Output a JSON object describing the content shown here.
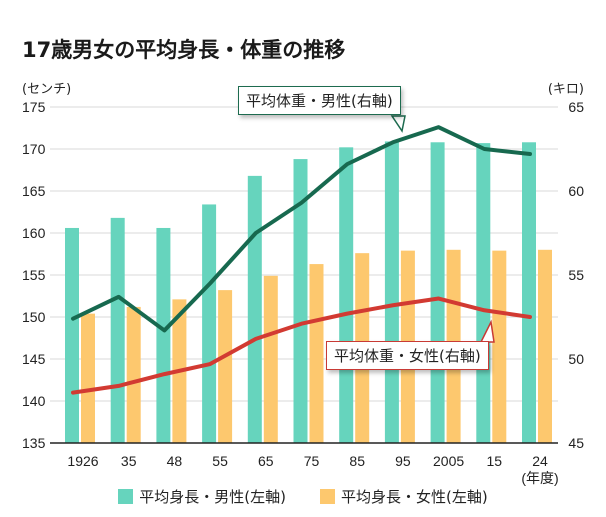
{
  "chart_data": {
    "type": "bar+line",
    "title": "17歳男女の平均身長・体重の推移",
    "left_axis": {
      "label": "(センチ)",
      "range": [
        135,
        175
      ],
      "ticks": [
        135,
        140,
        145,
        150,
        155,
        160,
        165,
        170,
        175
      ]
    },
    "right_axis": {
      "label": "(キロ)",
      "range": [
        45,
        65
      ],
      "ticks": [
        45,
        50,
        55,
        60,
        65
      ]
    },
    "xlabel": "(年度)",
    "categories": [
      "1926",
      "35",
      "48",
      "55",
      "65",
      "75",
      "85",
      "95",
      "2005",
      "15",
      "24"
    ],
    "grid": true,
    "legend_position": "bottom",
    "series": [
      {
        "name": "平均身長・男性(左軸)",
        "type": "bar",
        "axis": "left",
        "color": "#66d4bd",
        "values": [
          160.6,
          161.8,
          160.6,
          163.4,
          166.8,
          168.8,
          170.2,
          170.9,
          170.8,
          170.7,
          170.8
        ]
      },
      {
        "name": "平均身長・女性(左軸)",
        "type": "bar",
        "axis": "left",
        "color": "#fdc86e",
        "values": [
          150.4,
          151.2,
          152.1,
          153.2,
          154.9,
          156.3,
          157.6,
          157.9,
          158.0,
          157.9,
          158.0
        ]
      },
      {
        "name": "平均体重・男性(右軸)",
        "type": "line",
        "axis": "right",
        "color": "#17694f",
        "values": [
          52.4,
          53.7,
          51.7,
          54.5,
          57.5,
          59.3,
          61.6,
          62.9,
          63.8,
          62.5,
          62.2
        ]
      },
      {
        "name": "平均体重・女性(右軸)",
        "type": "line",
        "axis": "right",
        "color": "#d23a32",
        "values": [
          48.0,
          48.4,
          49.1,
          49.7,
          51.2,
          52.1,
          52.7,
          53.2,
          53.6,
          52.9,
          52.5
        ]
      }
    ],
    "annotations": [
      "平均体重・男性(右軸)",
      "平均体重・女性(右軸)"
    ]
  },
  "labels": {
    "title": "17歳男女の平均身長・体重の推移",
    "unit_left": "(センチ)",
    "unit_right": "(キロ)",
    "year_unit": "(年度)",
    "callout_male": "平均体重・男性(右軸)",
    "callout_female": "平均体重・女性(右軸)",
    "legend_male": "平均身長・男性(左軸)",
    "legend_female": "平均身長・女性(左軸)"
  }
}
